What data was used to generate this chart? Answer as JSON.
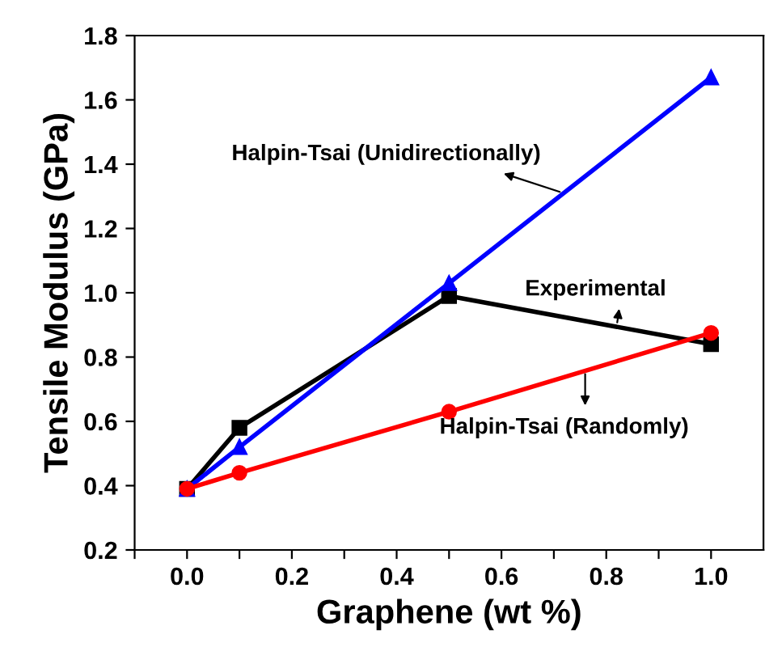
{
  "chart_data": {
    "type": "line",
    "xlabel": "Graphene (wt %)",
    "ylabel": "Tensile Modulus (GPa)",
    "x": [
      0.0,
      0.1,
      0.5,
      1.0
    ],
    "series": [
      {
        "color": "#000000",
        "marker": "square",
        "values": [
          0.39,
          0.58,
          0.99,
          0.84
        ]
      },
      {
        "color": "#0000ff",
        "marker": "triangle",
        "values": [
          0.39,
          0.52,
          1.03,
          1.67
        ]
      },
      {
        "color": "#ff0000",
        "marker": "circle",
        "values": [
          0.39,
          0.44,
          0.63,
          0.875
        ]
      }
    ],
    "xlim": [
      -0.1,
      1.1
    ],
    "xticks": [
      {
        "value": -0.1,
        "label": null
      },
      {
        "value": 0,
        "label": "0.0"
      },
      {
        "value": 0.1,
        "label": null
      },
      0.2,
      {
        "value": 0.3,
        "label": null
      },
      0.4,
      {
        "value": 0.5,
        "label": null
      },
      0.6,
      {
        "value": 0.7,
        "label": null
      },
      0.8,
      {
        "value": 0.9,
        "label": null
      },
      {
        "value": 1,
        "label": "1.0"
      }
    ],
    "ylim": [
      0.2,
      1.8
    ],
    "yticks": [
      0.2,
      0.4,
      0.6,
      0.8,
      {
        "value": 1,
        "label": "1.0"
      },
      1.2,
      1.4,
      1.6,
      1.8
    ],
    "grid": false,
    "legend": false,
    "line_style": "solid",
    "annotations": [
      "Halpin-Tsai (Unidirectionally)",
      "Experimental",
      "Halpin-Tsai (Randomly)"
    ]
  }
}
